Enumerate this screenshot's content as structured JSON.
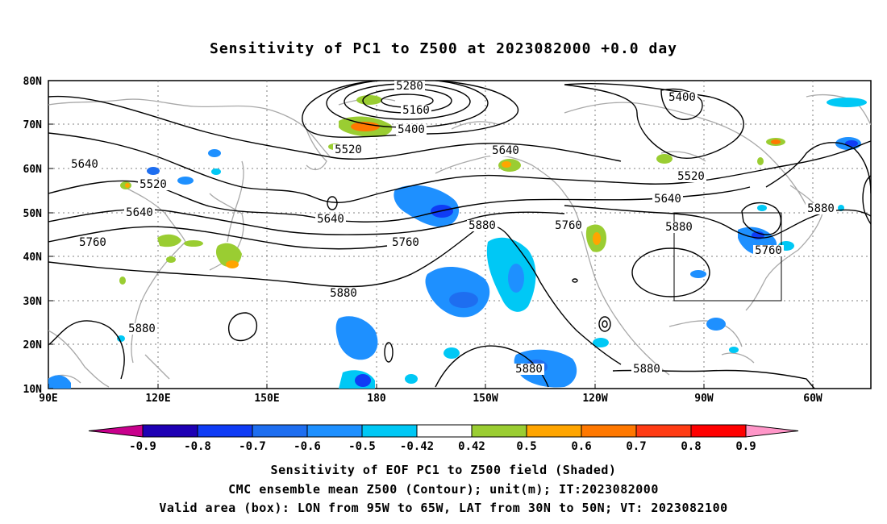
{
  "title": "Sensitivity of PC1 to Z500 at 2023082000 +0.0 day",
  "lat_labels": [
    "80N",
    "70N",
    "60N",
    "50N",
    "40N",
    "30N",
    "20N",
    "10N"
  ],
  "lon_labels": [
    "90E",
    "120E",
    "150E",
    "180",
    "150W",
    "120W",
    "90W",
    "60W"
  ],
  "contour_labels": [
    "5280",
    "5160",
    "5400",
    "5520",
    "5400",
    "5640",
    "5640",
    "5520",
    "5640",
    "5640",
    "5760",
    "5760",
    "5880",
    "5760",
    "5640",
    "5520",
    "5880",
    "5760",
    "5880",
    "5880",
    "5880",
    "5880",
    "5880"
  ],
  "colorbar": {
    "labels": [
      "-0.9",
      "-0.8",
      "-0.7",
      "-0.6",
      "-0.5",
      "-0.42",
      "0.42",
      "0.5",
      "0.6",
      "0.7",
      "0.8",
      "0.9"
    ],
    "colors": [
      "#c8008c",
      "#1e00b4",
      "#0f3cf5",
      "#1e6ef0",
      "#1e90ff",
      "#00c8f5",
      "#ffffff",
      "#9acd32",
      "#ffa500",
      "#ff7800",
      "#ff3c14",
      "#ff0000",
      "#ff96c8"
    ]
  },
  "valid_box": {
    "lon_from": "95W",
    "lon_to": "65W",
    "lat_from": "30N",
    "lat_to": "50N"
  },
  "captions": {
    "line1": "Sensitivity of EOF PC1 to Z500 field (Shaded)",
    "line2": "CMC ensemble mean Z500 (Contour); unit(m); IT:2023082000",
    "line3": "Valid area (box): LON from 95W to 65W, LAT from 30N to 50N; VT: 2023082100"
  },
  "colors": {
    "contour": "#000000",
    "coast": "#a8a8a8",
    "grid": "#808080"
  }
}
